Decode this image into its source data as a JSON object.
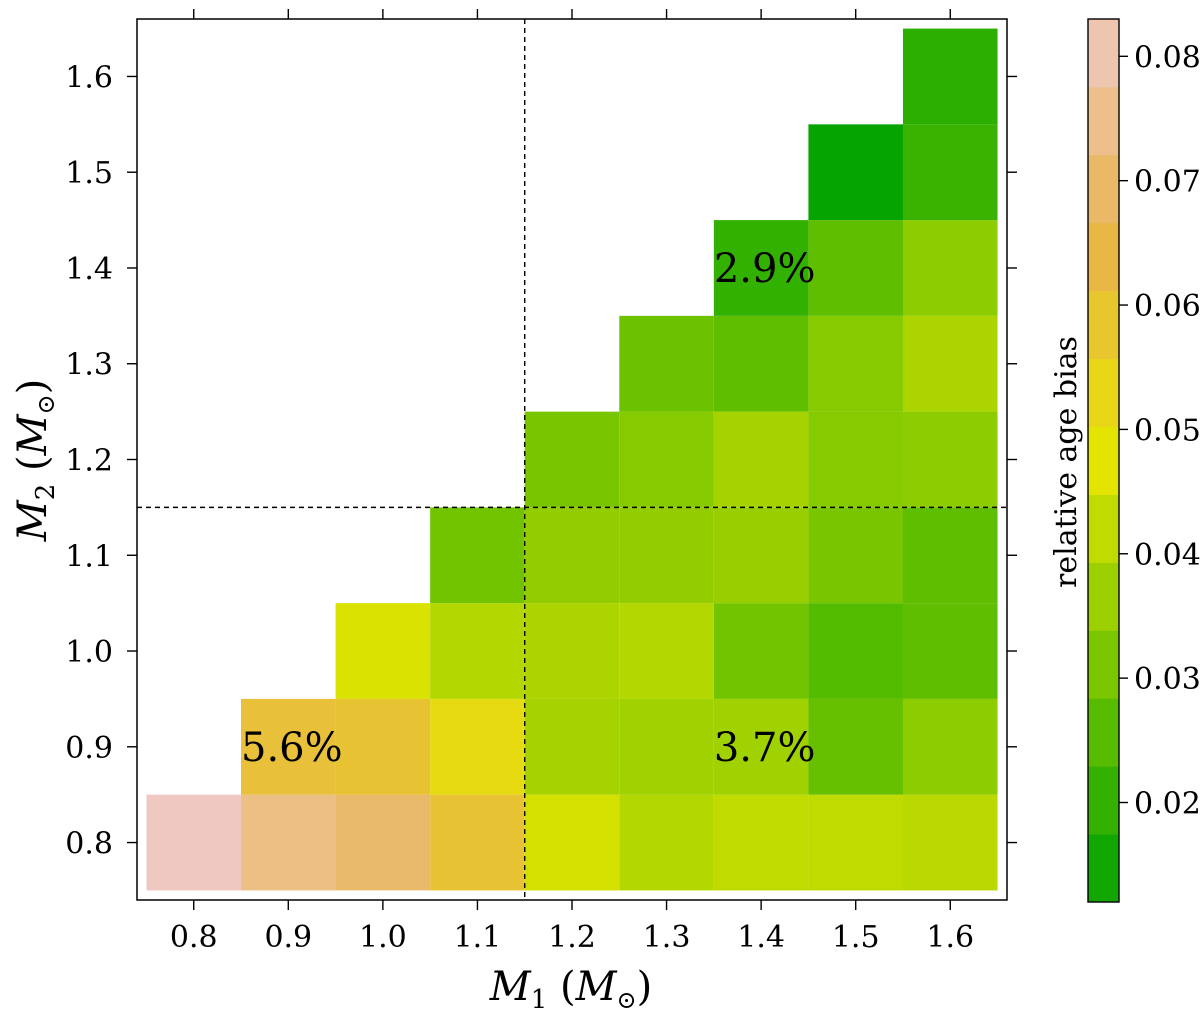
{
  "chart_data": {
    "type": "heatmap",
    "title": "",
    "xlabel": {
      "symbol": "M",
      "sub": "1",
      "unit_open": " (",
      "unit_symbol": "M",
      "unit_sub": "⊙",
      "unit_close": ")"
    },
    "ylabel": {
      "symbol": "M",
      "sub": "2",
      "unit_open": " (",
      "unit_symbol": "M",
      "unit_sub": "⊙",
      "unit_close": ")"
    },
    "x_centers": [
      0.8,
      0.9,
      1.0,
      1.1,
      1.2,
      1.3,
      1.4,
      1.5,
      1.6
    ],
    "y_centers": [
      0.8,
      0.9,
      1.0,
      1.1,
      1.2,
      1.3,
      1.4,
      1.5,
      1.6
    ],
    "xlim": [
      0.74,
      1.66
    ],
    "ylim": [
      0.74,
      1.66
    ],
    "x_ticks": [
      "0.8",
      "0.9",
      "1.0",
      "1.1",
      "1.2",
      "1.3",
      "1.4",
      "1.5",
      "1.6"
    ],
    "y_ticks": [
      "0.8",
      "0.9",
      "1.0",
      "1.1",
      "1.2",
      "1.3",
      "1.4",
      "1.5",
      "1.6"
    ],
    "values": [
      [
        0.083,
        0.074,
        0.07,
        0.06,
        0.045,
        0.04,
        0.042,
        0.042,
        0.041
      ],
      [
        null,
        0.061,
        0.06,
        0.052,
        0.038,
        0.037,
        0.037,
        0.028,
        0.034
      ],
      [
        null,
        null,
        0.046,
        0.04,
        0.039,
        0.04,
        0.03,
        0.025,
        0.027
      ],
      [
        null,
        null,
        null,
        0.03,
        0.035,
        0.035,
        0.036,
        0.031,
        0.027
      ],
      [
        null,
        null,
        null,
        null,
        0.031,
        0.033,
        0.038,
        0.033,
        0.034
      ],
      [
        null,
        null,
        null,
        null,
        null,
        0.029,
        0.027,
        0.033,
        0.039
      ],
      [
        null,
        null,
        null,
        null,
        null,
        null,
        0.02,
        0.027,
        0.034
      ],
      [
        null,
        null,
        null,
        null,
        null,
        null,
        null,
        0.013,
        0.021
      ],
      [
        null,
        null,
        null,
        null,
        null,
        null,
        null,
        null,
        0.019
      ]
    ],
    "dashed_lines": {
      "vertical_x": 1.15,
      "horizontal_y": 1.15
    },
    "annotations": [
      {
        "text": "5.6%",
        "x": 0.85,
        "y": 0.9
      },
      {
        "text": "3.7%",
        "x": 1.35,
        "y": 0.9
      },
      {
        "text": "2.9%",
        "x": 1.35,
        "y": 1.4
      }
    ],
    "colorbar": {
      "label": "relative age bias",
      "range": [
        0.012,
        0.083
      ],
      "ticks": [
        "0.02",
        "0.03",
        "0.04",
        "0.05",
        "0.06",
        "0.07",
        "0.08"
      ],
      "tick_values": [
        0.02,
        0.03,
        0.04,
        0.05,
        0.06,
        0.07,
        0.08
      ],
      "steps": 13,
      "color_stops": [
        {
          "v": 0.012,
          "c": "#00a200"
        },
        {
          "v": 0.048,
          "c": "#e6e600"
        },
        {
          "v": 0.065,
          "c": "#e8b44a"
        },
        {
          "v": 0.083,
          "c": "#efc9c1"
        }
      ]
    }
  }
}
